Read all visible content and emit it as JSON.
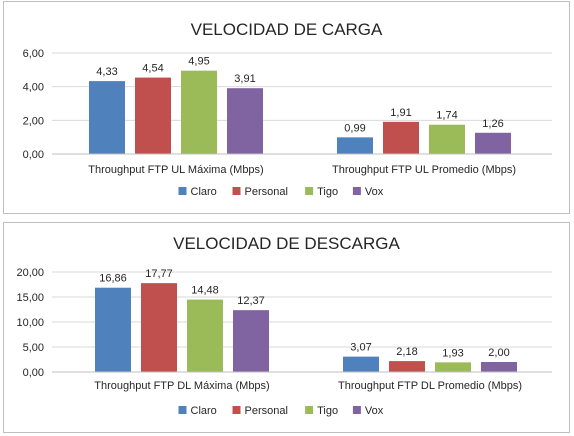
{
  "colors": {
    "Claro": "#4f81bd",
    "Personal": "#c0504d",
    "Tigo": "#9bbb59",
    "Vox": "#8064a2",
    "grid": "#d9d9d9",
    "axis": "#bfbfbf"
  },
  "chart_data": [
    {
      "type": "bar",
      "title": "VELOCIDAD DE CARGA",
      "categories": [
        "Throughput FTP UL Máxima (Mbps)",
        "Throughput FTP UL Promedio (Mbps)"
      ],
      "series": [
        {
          "name": "Claro",
          "values": [
            4.33,
            0.99
          ],
          "labels": [
            "4,33",
            "0,99"
          ]
        },
        {
          "name": "Personal",
          "values": [
            4.54,
            1.91
          ],
          "labels": [
            "4,54",
            "1,91"
          ]
        },
        {
          "name": "Tigo",
          "values": [
            4.95,
            1.74
          ],
          "labels": [
            "4,95",
            "1,74"
          ]
        },
        {
          "name": "Vox",
          "values": [
            3.91,
            1.26
          ],
          "labels": [
            "3,91",
            "1,26"
          ]
        }
      ],
      "ylim": [
        0,
        6
      ],
      "yticks": [
        0,
        2,
        4,
        6
      ],
      "ytick_labels": [
        "0,00",
        "2,00",
        "4,00",
        "6,00"
      ],
      "grid": true,
      "legend": "bottom"
    },
    {
      "type": "bar",
      "title": "VELOCIDAD DE DESCARGA",
      "categories": [
        "Throughput FTP DL Máxima (Mbps)",
        "Throughput FTP DL Promedio (Mbps)"
      ],
      "series": [
        {
          "name": "Claro",
          "values": [
            16.86,
            3.07
          ],
          "labels": [
            "16,86",
            "3,07"
          ]
        },
        {
          "name": "Personal",
          "values": [
            17.77,
            2.18
          ],
          "labels": [
            "17,77",
            "2,18"
          ]
        },
        {
          "name": "Tigo",
          "values": [
            14.48,
            1.93
          ],
          "labels": [
            "14,48",
            "1,93"
          ]
        },
        {
          "name": "Vox",
          "values": [
            12.37,
            2.0
          ],
          "labels": [
            "12,37",
            "2,00"
          ]
        }
      ],
      "ylim": [
        0,
        20
      ],
      "yticks": [
        0,
        5,
        10,
        15,
        20
      ],
      "ytick_labels": [
        "0,00",
        "5,00",
        "10,00",
        "15,00",
        "20,00"
      ],
      "grid": true,
      "legend": "bottom"
    }
  ]
}
